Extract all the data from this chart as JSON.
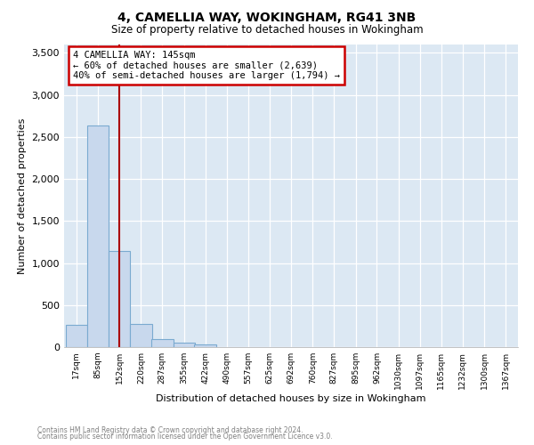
{
  "title": "4, CAMELLIA WAY, WOKINGHAM, RG41 3NB",
  "subtitle": "Size of property relative to detached houses in Wokingham",
  "xlabel": "Distribution of detached houses by size in Wokingham",
  "ylabel": "Number of detached properties",
  "footnote1": "Contains HM Land Registry data © Crown copyright and database right 2024.",
  "footnote2": "Contains public sector information licensed under the Open Government Licence v3.0.",
  "bar_fill_color": "#c8d8ed",
  "bar_edge_color": "#7aaad0",
  "grid_color": "#e0e8f0",
  "bg_color": "#dce8f3",
  "fig_bg_color": "#ffffff",
  "property_line_color": "#aa0000",
  "annotation_box_color": "#cc0000",
  "annotation_line1": "4 CAMELLIA WAY: 145sqm",
  "annotation_line2": "← 60% of detached houses are smaller (2,639)",
  "annotation_line3": "40% of semi-detached houses are larger (1,794) →",
  "bin_centers": [
    17,
    85,
    152,
    220,
    287,
    355,
    422,
    490,
    557,
    625,
    692,
    760,
    827,
    895,
    962,
    1030,
    1097,
    1165,
    1232,
    1300,
    1367
  ],
  "bar_heights": [
    270,
    2640,
    1140,
    280,
    100,
    50,
    30,
    0,
    0,
    0,
    0,
    0,
    0,
    0,
    0,
    0,
    0,
    0,
    0,
    0,
    0
  ],
  "property_line_x": 152,
  "ylim": [
    0,
    3600
  ],
  "yticks": [
    0,
    500,
    1000,
    1500,
    2000,
    2500,
    3000,
    3500
  ]
}
